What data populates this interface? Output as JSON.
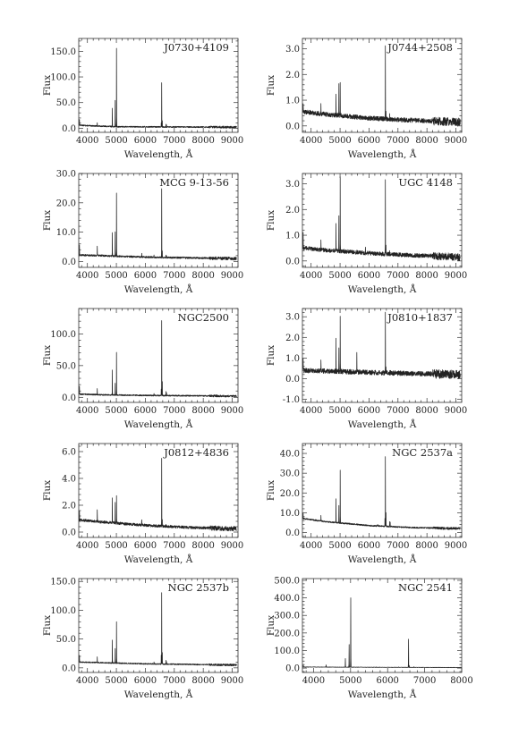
{
  "figure": {
    "xlabel": "Wavelength, Å",
    "ylabel": "Flux"
  },
  "chart_data": [
    {
      "type": "line",
      "title": "J0730+4109",
      "xlabel": "Wavelength, Å",
      "ylabel": "Flux",
      "xlim": [
        3700,
        9200
      ],
      "ylim": [
        -8,
        175
      ],
      "xticks": [
        4000,
        5000,
        6000,
        7000,
        8000,
        9000
      ],
      "yticks": [
        0.0,
        50.0,
        100.0,
        150.0
      ],
      "yticklabels": [
        "0.0",
        "50.0",
        "100.0",
        "150.0"
      ],
      "continuum": [
        [
          3750,
          6
        ],
        [
          4000,
          5
        ],
        [
          5000,
          3
        ],
        [
          7000,
          2.5
        ],
        [
          9100,
          2
        ]
      ],
      "noise": 1.2,
      "lines": [
        [
          3727,
          12
        ],
        [
          4340,
          7
        ],
        [
          4861,
          35
        ],
        [
          4959,
          50
        ],
        [
          5007,
          152
        ],
        [
          6548,
          8
        ],
        [
          6563,
          87
        ],
        [
          6584,
          12
        ],
        [
          6717,
          5
        ],
        [
          6731,
          4
        ]
      ]
    },
    {
      "type": "line",
      "title": "J0744+2508",
      "xlabel": "Wavelength, Å",
      "ylabel": "Flux",
      "xlim": [
        3700,
        9200
      ],
      "ylim": [
        -0.25,
        3.4
      ],
      "xticks": [
        4000,
        5000,
        6000,
        7000,
        8000,
        9000
      ],
      "yticks": [
        0.0,
        1.0,
        2.0,
        3.0
      ],
      "yticklabels": [
        "0.0",
        "1.0",
        "2.0",
        "3.0"
      ],
      "continuum": [
        [
          3750,
          0.55
        ],
        [
          4500,
          0.45
        ],
        [
          6000,
          0.3
        ],
        [
          7500,
          0.22
        ],
        [
          9100,
          0.15
        ]
      ],
      "noise": 0.09,
      "lines": [
        [
          3727,
          0.35
        ],
        [
          4340,
          0.4
        ],
        [
          4861,
          0.8
        ],
        [
          4959,
          1.25
        ],
        [
          5007,
          1.35
        ],
        [
          6563,
          2.9
        ],
        [
          6584,
          0.3
        ],
        [
          6717,
          0.15
        ]
      ]
    },
    {
      "type": "line",
      "title": "MCG 9-13-56",
      "xlabel": "Wavelength, Å",
      "ylabel": "Flux",
      "xlim": [
        3700,
        9200
      ],
      "ylim": [
        -2,
        30
      ],
      "xticks": [
        4000,
        5000,
        6000,
        7000,
        8000,
        9000
      ],
      "yticks": [
        0.0,
        10.0,
        20.0,
        30.0
      ],
      "yticklabels": [
        "0.0",
        "10.0",
        "20.0",
        "30.0"
      ],
      "continuum": [
        [
          3750,
          2.2
        ],
        [
          4500,
          2.0
        ],
        [
          6000,
          1.5
        ],
        [
          9100,
          1.0
        ]
      ],
      "noise": 0.3,
      "lines": [
        [
          3727,
          3.5
        ],
        [
          4340,
          3
        ],
        [
          4861,
          8
        ],
        [
          4959,
          8
        ],
        [
          5007,
          21.5
        ],
        [
          5876,
          1.2
        ],
        [
          6300,
          0.8
        ],
        [
          6563,
          23.5
        ],
        [
          6584,
          2.2
        ],
        [
          6717,
          1.0
        ],
        [
          6731,
          0.8
        ]
      ]
    },
    {
      "type": "line",
      "title": "UGC 4148",
      "xlabel": "Wavelength, Å",
      "ylabel": "Flux",
      "xlim": [
        3700,
        9200
      ],
      "ylim": [
        -0.25,
        3.4
      ],
      "xticks": [
        4000,
        5000,
        6000,
        7000,
        8000,
        9000
      ],
      "yticks": [
        0.0,
        1.0,
        2.0,
        3.0
      ],
      "yticklabels": [
        "0.0",
        "1.0",
        "2.0",
        "3.0"
      ],
      "continuum": [
        [
          3750,
          0.5
        ],
        [
          4500,
          0.42
        ],
        [
          6000,
          0.3
        ],
        [
          7500,
          0.22
        ],
        [
          9100,
          0.15
        ]
      ],
      "noise": 0.08,
      "lines": [
        [
          3727,
          0.6
        ],
        [
          4340,
          0.45
        ],
        [
          4861,
          1.1
        ],
        [
          4959,
          1.4
        ],
        [
          5007,
          2.85
        ],
        [
          5876,
          0.25
        ],
        [
          6563,
          2.9
        ],
        [
          6584,
          0.35
        ],
        [
          6717,
          0.15
        ]
      ]
    },
    {
      "type": "line",
      "title": "NGC2500",
      "xlabel": "Wavelength, Å",
      "ylabel": "Flux",
      "xlim": [
        3700,
        9200
      ],
      "ylim": [
        -8,
        140
      ],
      "xticks": [
        4000,
        5000,
        6000,
        7000,
        8000,
        9000
      ],
      "yticks": [
        0.0,
        50.0,
        100.0
      ],
      "yticklabels": [
        "0.0",
        "50.0",
        "100.0"
      ],
      "continuum": [
        [
          3750,
          5
        ],
        [
          4500,
          4
        ],
        [
          6000,
          3
        ],
        [
          9100,
          2
        ]
      ],
      "noise": 1.0,
      "lines": [
        [
          3727,
          12
        ],
        [
          4340,
          10
        ],
        [
          4861,
          40
        ],
        [
          4959,
          18
        ],
        [
          5007,
          68
        ],
        [
          6300,
          3
        ],
        [
          6548,
          10
        ],
        [
          6563,
          118
        ],
        [
          6584,
          22
        ],
        [
          6717,
          6
        ],
        [
          6731,
          4
        ]
      ]
    },
    {
      "type": "line",
      "title": "J0810+1837",
      "xlabel": "Wavelength, Å",
      "ylabel": "Flux",
      "xlim": [
        3700,
        9200
      ],
      "ylim": [
        -1.15,
        3.4
      ],
      "xticks": [
        4000,
        5000,
        6000,
        7000,
        8000,
        9000
      ],
      "yticks": [
        -1.0,
        0.0,
        1.0,
        2.0,
        3.0
      ],
      "yticklabels": [
        "-1.0",
        "0.0",
        "1.0",
        "2.0",
        "3.0"
      ],
      "continuum": [
        [
          3750,
          0.4
        ],
        [
          6000,
          0.3
        ],
        [
          9100,
          0.2
        ]
      ],
      "noise": 0.12,
      "lines": [
        [
          3727,
          0.5
        ],
        [
          4340,
          0.5
        ],
        [
          4861,
          1.5
        ],
        [
          4959,
          1.2
        ],
        [
          5007,
          2.7
        ],
        [
          5580,
          1.0
        ],
        [
          6563,
          2.9
        ],
        [
          6584,
          0.3
        ]
      ]
    },
    {
      "type": "line",
      "title": "J0812+4836",
      "xlabel": "Wavelength, Å",
      "ylabel": "Flux",
      "xlim": [
        3700,
        9200
      ],
      "ylim": [
        -0.4,
        6.6
      ],
      "xticks": [
        4000,
        5000,
        6000,
        7000,
        8000,
        9000
      ],
      "yticks": [
        0.0,
        2.0,
        4.0,
        6.0
      ],
      "yticklabels": [
        "0.0",
        "2.0",
        "4.0",
        "6.0"
      ],
      "continuum": [
        [
          3750,
          0.9
        ],
        [
          4500,
          0.75
        ],
        [
          6000,
          0.5
        ],
        [
          7500,
          0.35
        ],
        [
          9100,
          0.25
        ]
      ],
      "noise": 0.1,
      "lines": [
        [
          3727,
          0.6
        ],
        [
          4340,
          0.8
        ],
        [
          4861,
          1.8
        ],
        [
          4959,
          1.5
        ],
        [
          5007,
          2.0
        ],
        [
          5876,
          0.4
        ],
        [
          6563,
          5.0
        ],
        [
          6584,
          0.5
        ],
        [
          6717,
          0.2
        ]
      ]
    },
    {
      "type": "line",
      "title": "NGC 2537a",
      "xlabel": "Wavelength, Å",
      "ylabel": "Flux",
      "xlim": [
        3700,
        9200
      ],
      "ylim": [
        -2.5,
        45
      ],
      "xticks": [
        4000,
        5000,
        6000,
        7000,
        8000,
        9000
      ],
      "yticks": [
        0.0,
        10.0,
        20.0,
        30.0,
        40.0
      ],
      "yticklabels": [
        "0.0",
        "10.0",
        "20.0",
        "30.0",
        "40.0"
      ],
      "continuum": [
        [
          3750,
          7
        ],
        [
          4500,
          5.5
        ],
        [
          6000,
          3.5
        ],
        [
          7500,
          2.5
        ],
        [
          9100,
          2
        ]
      ],
      "noise": 0.35,
      "lines": [
        [
          3727,
          3
        ],
        [
          4340,
          3
        ],
        [
          4861,
          12
        ],
        [
          4959,
          9
        ],
        [
          5007,
          27
        ],
        [
          6300,
          1
        ],
        [
          6548,
          4
        ],
        [
          6563,
          35
        ],
        [
          6584,
          7
        ],
        [
          6717,
          2.5
        ],
        [
          6731,
          2
        ]
      ]
    },
    {
      "type": "line",
      "title": "NGC 2537b",
      "xlabel": "Wavelength, Å",
      "ylabel": "Flux",
      "xlim": [
        3700,
        9200
      ],
      "ylim": [
        -8,
        155
      ],
      "xticks": [
        4000,
        5000,
        6000,
        7000,
        8000,
        9000
      ],
      "yticks": [
        0.0,
        50.0,
        100.0,
        150.0
      ],
      "yticklabels": [
        "0.0",
        "50.0",
        "100.0",
        "150.0"
      ],
      "continuum": [
        [
          3750,
          10
        ],
        [
          4500,
          9
        ],
        [
          6000,
          7
        ],
        [
          7500,
          6
        ],
        [
          9100,
          5
        ]
      ],
      "noise": 1.0,
      "lines": [
        [
          3727,
          12
        ],
        [
          4340,
          10
        ],
        [
          4861,
          40
        ],
        [
          4959,
          25
        ],
        [
          5007,
          72
        ],
        [
          6300,
          3
        ],
        [
          6548,
          15
        ],
        [
          6563,
          125
        ],
        [
          6584,
          20
        ],
        [
          6717,
          6
        ],
        [
          6731,
          5
        ]
      ]
    },
    {
      "type": "line",
      "title": "NGC 2541",
      "xlabel": "Wavelength, Å",
      "ylabel": "Flux",
      "xlim": [
        3700,
        8000
      ],
      "ylim": [
        -25,
        510
      ],
      "xticks": [
        4000,
        5000,
        6000,
        7000,
        8000
      ],
      "yticks": [
        0.0,
        100.0,
        200.0,
        300.0,
        400.0,
        500.0
      ],
      "yticklabels": [
        "0.0",
        "100.0",
        "200.0",
        "300.0",
        "400.0",
        "500.0"
      ],
      "continuum": [
        [
          3750,
          6
        ],
        [
          5000,
          5
        ],
        [
          8000,
          3
        ]
      ],
      "noise": 1.0,
      "lines": [
        [
          3727,
          10
        ],
        [
          4340,
          12
        ],
        [
          4861,
          50
        ],
        [
          4959,
          130
        ],
        [
          5007,
          395
        ],
        [
          6300,
          3
        ],
        [
          6563,
          162
        ],
        [
          6584,
          10
        ],
        [
          6717,
          5
        ]
      ]
    }
  ]
}
